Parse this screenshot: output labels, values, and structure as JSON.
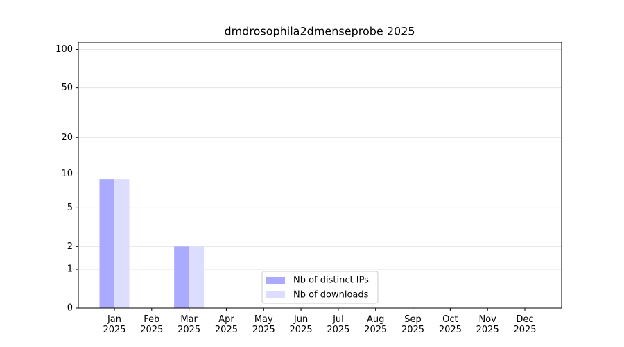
{
  "chart_data": {
    "type": "bar",
    "title": "dmdrosophila2dmenseprobe 2025",
    "categories": [
      "Jan 2025",
      "Feb 2025",
      "Mar 2025",
      "Apr 2025",
      "May 2025",
      "Jun 2025",
      "Jul 2025",
      "Aug 2025",
      "Sep 2025",
      "Oct 2025",
      "Nov 2025",
      "Dec 2025"
    ],
    "series": [
      {
        "name": "Nb of distinct IPs",
        "color": "#aaaaff",
        "values": [
          9,
          0,
          2,
          0,
          0,
          0,
          0,
          0,
          0,
          0,
          0,
          0
        ]
      },
      {
        "name": "Nb of downloads",
        "color": "#ddddff",
        "values": [
          9,
          0,
          2,
          0,
          0,
          0,
          0,
          0,
          0,
          0,
          0,
          0
        ]
      }
    ],
    "yscale": "log1p",
    "ylim": [
      0,
      114
    ],
    "yticks": [
      0,
      1,
      2,
      5,
      10,
      20,
      50,
      100
    ],
    "grid": true,
    "legend": "lower center"
  }
}
